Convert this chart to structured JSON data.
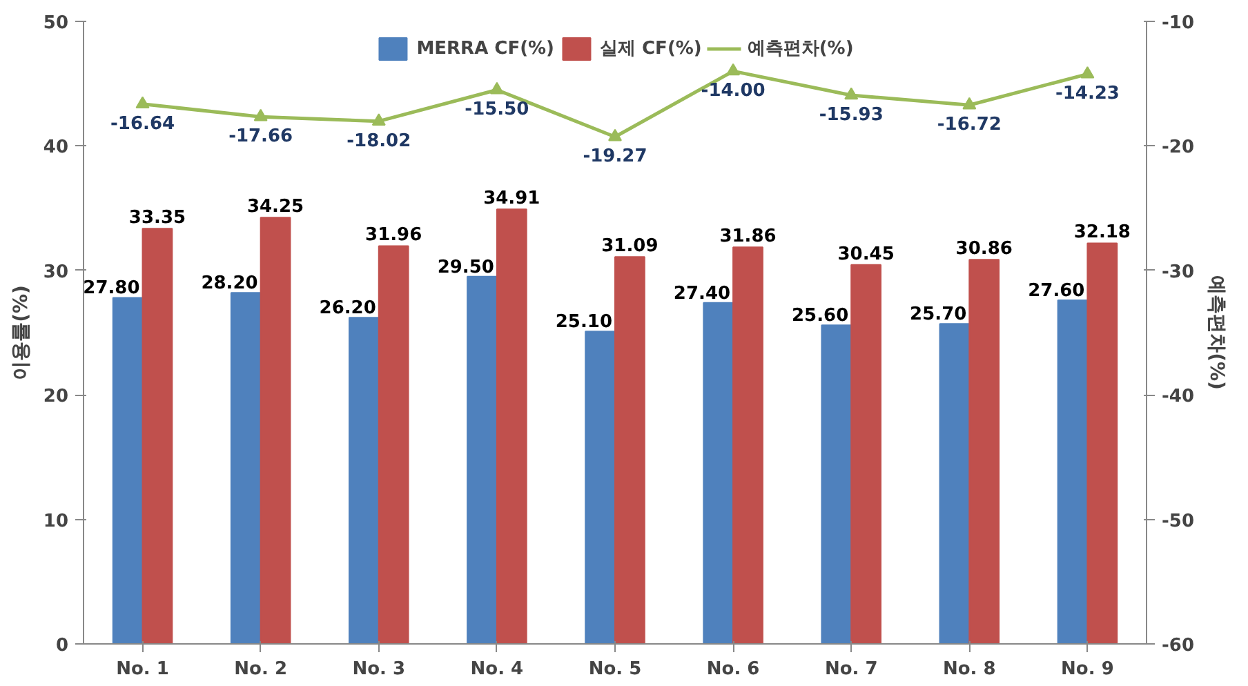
{
  "chart_data": {
    "type": "bar",
    "ylabel": "이용률(%)",
    "y2label": "예측편차(%)",
    "categories": [
      "No. 1",
      "No. 2",
      "No. 3",
      "No. 4",
      "No. 5",
      "No. 6",
      "No. 7",
      "No. 8",
      "No. 9"
    ],
    "series": [
      {
        "name": "MERRA CF(%)",
        "color": "#4f81bd",
        "values": [
          27.8,
          28.2,
          26.2,
          29.5,
          25.1,
          27.4,
          25.6,
          25.7,
          27.6
        ],
        "value_labels": [
          "27.80",
          "28.20",
          "26.20",
          "29.50",
          "25.10",
          "27.40",
          "25.60",
          "25.70",
          "27.60"
        ]
      },
      {
        "name": "실제 CF(%)",
        "color": "#c0504d",
        "values": [
          33.35,
          34.25,
          31.96,
          34.91,
          31.09,
          31.86,
          30.45,
          30.86,
          32.18
        ],
        "value_labels": [
          "33.35",
          "34.25",
          "31.96",
          "34.91",
          "31.09",
          "31.86",
          "30.45",
          "30.86",
          "32.18"
        ]
      },
      {
        "name": "예측편차(%)",
        "type": "line",
        "axis": "y2",
        "color": "#9bbb59",
        "marker": "triangle",
        "values": [
          -16.64,
          -17.66,
          -18.02,
          -15.5,
          -19.27,
          -14.0,
          -15.93,
          -16.72,
          -14.23
        ],
        "value_labels": [
          "-16.64",
          "-17.66",
          "-18.02",
          "-15.50",
          "-19.27",
          "-14.00",
          "-15.93",
          "-16.72",
          "-14.23"
        ]
      }
    ],
    "ylim": [
      0,
      50
    ],
    "yticks": [
      0,
      10,
      20,
      30,
      40,
      50
    ],
    "y2lim": [
      -60,
      -10
    ],
    "y2ticks": [
      -60,
      -50,
      -40,
      -30,
      -20,
      -10
    ],
    "legend": "top",
    "grid": false
  }
}
